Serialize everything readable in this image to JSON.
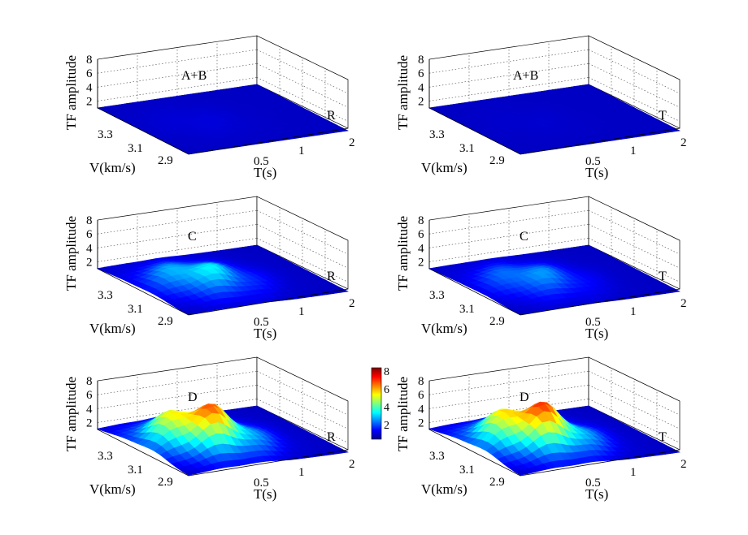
{
  "figure": {
    "panels": [
      {
        "label": "A+B",
        "component": "R",
        "peak": 1.2
      },
      {
        "label": "A+B",
        "component": "T",
        "peak": 1.1
      },
      {
        "label": "C",
        "component": "R",
        "peak": 3.6
      },
      {
        "label": "C",
        "component": "T",
        "peak": 2.8
      },
      {
        "label": "D",
        "component": "R",
        "peak": 7.2
      },
      {
        "label": "D",
        "component": "T",
        "peak": 7.5
      }
    ],
    "axes": {
      "zlabel": "TF amplitude",
      "vlabel": "V(km/s)",
      "tlabel": "T(s)",
      "z_ticks": [
        "2",
        "4",
        "6",
        "8"
      ],
      "v_ticks": [
        "3.3",
        "3.1",
        "2.9"
      ],
      "t_ticks": [
        "0.5",
        "1",
        "2"
      ]
    },
    "colorbar": {
      "ticks": [
        "2",
        "4",
        "6",
        "8"
      ],
      "range": [
        0.5,
        8
      ],
      "colormap": "jet"
    }
  },
  "chart_data": [
    {
      "type": "surface",
      "title": "A+B",
      "component": "R",
      "xlabel": "T(s)",
      "ylabel": "V(km/s)",
      "zlabel": "TF amplitude",
      "zlim": [
        1,
        8
      ],
      "max_amplitude": 1.2
    },
    {
      "type": "surface",
      "title": "A+B",
      "component": "T",
      "xlabel": "T(s)",
      "ylabel": "V(km/s)",
      "zlabel": "TF amplitude",
      "zlim": [
        1,
        8
      ],
      "max_amplitude": 1.1
    },
    {
      "type": "surface",
      "title": "C",
      "component": "R",
      "xlabel": "T(s)",
      "ylabel": "V(km/s)",
      "zlabel": "TF amplitude",
      "zlim": [
        1,
        8
      ],
      "max_amplitude": 3.6
    },
    {
      "type": "surface",
      "title": "C",
      "component": "T",
      "xlabel": "T(s)",
      "ylabel": "V(km/s)",
      "zlabel": "TF amplitude",
      "zlim": [
        1,
        8
      ],
      "max_amplitude": 2.8
    },
    {
      "type": "surface",
      "title": "D",
      "component": "R",
      "xlabel": "T(s)",
      "ylabel": "V(km/s)",
      "zlabel": "TF amplitude",
      "zlim": [
        1,
        8
      ],
      "max_amplitude": 7.2
    },
    {
      "type": "surface",
      "title": "D",
      "component": "T",
      "xlabel": "T(s)",
      "ylabel": "V(km/s)",
      "zlabel": "TF amplitude",
      "zlim": [
        1,
        8
      ],
      "max_amplitude": 7.5
    }
  ]
}
